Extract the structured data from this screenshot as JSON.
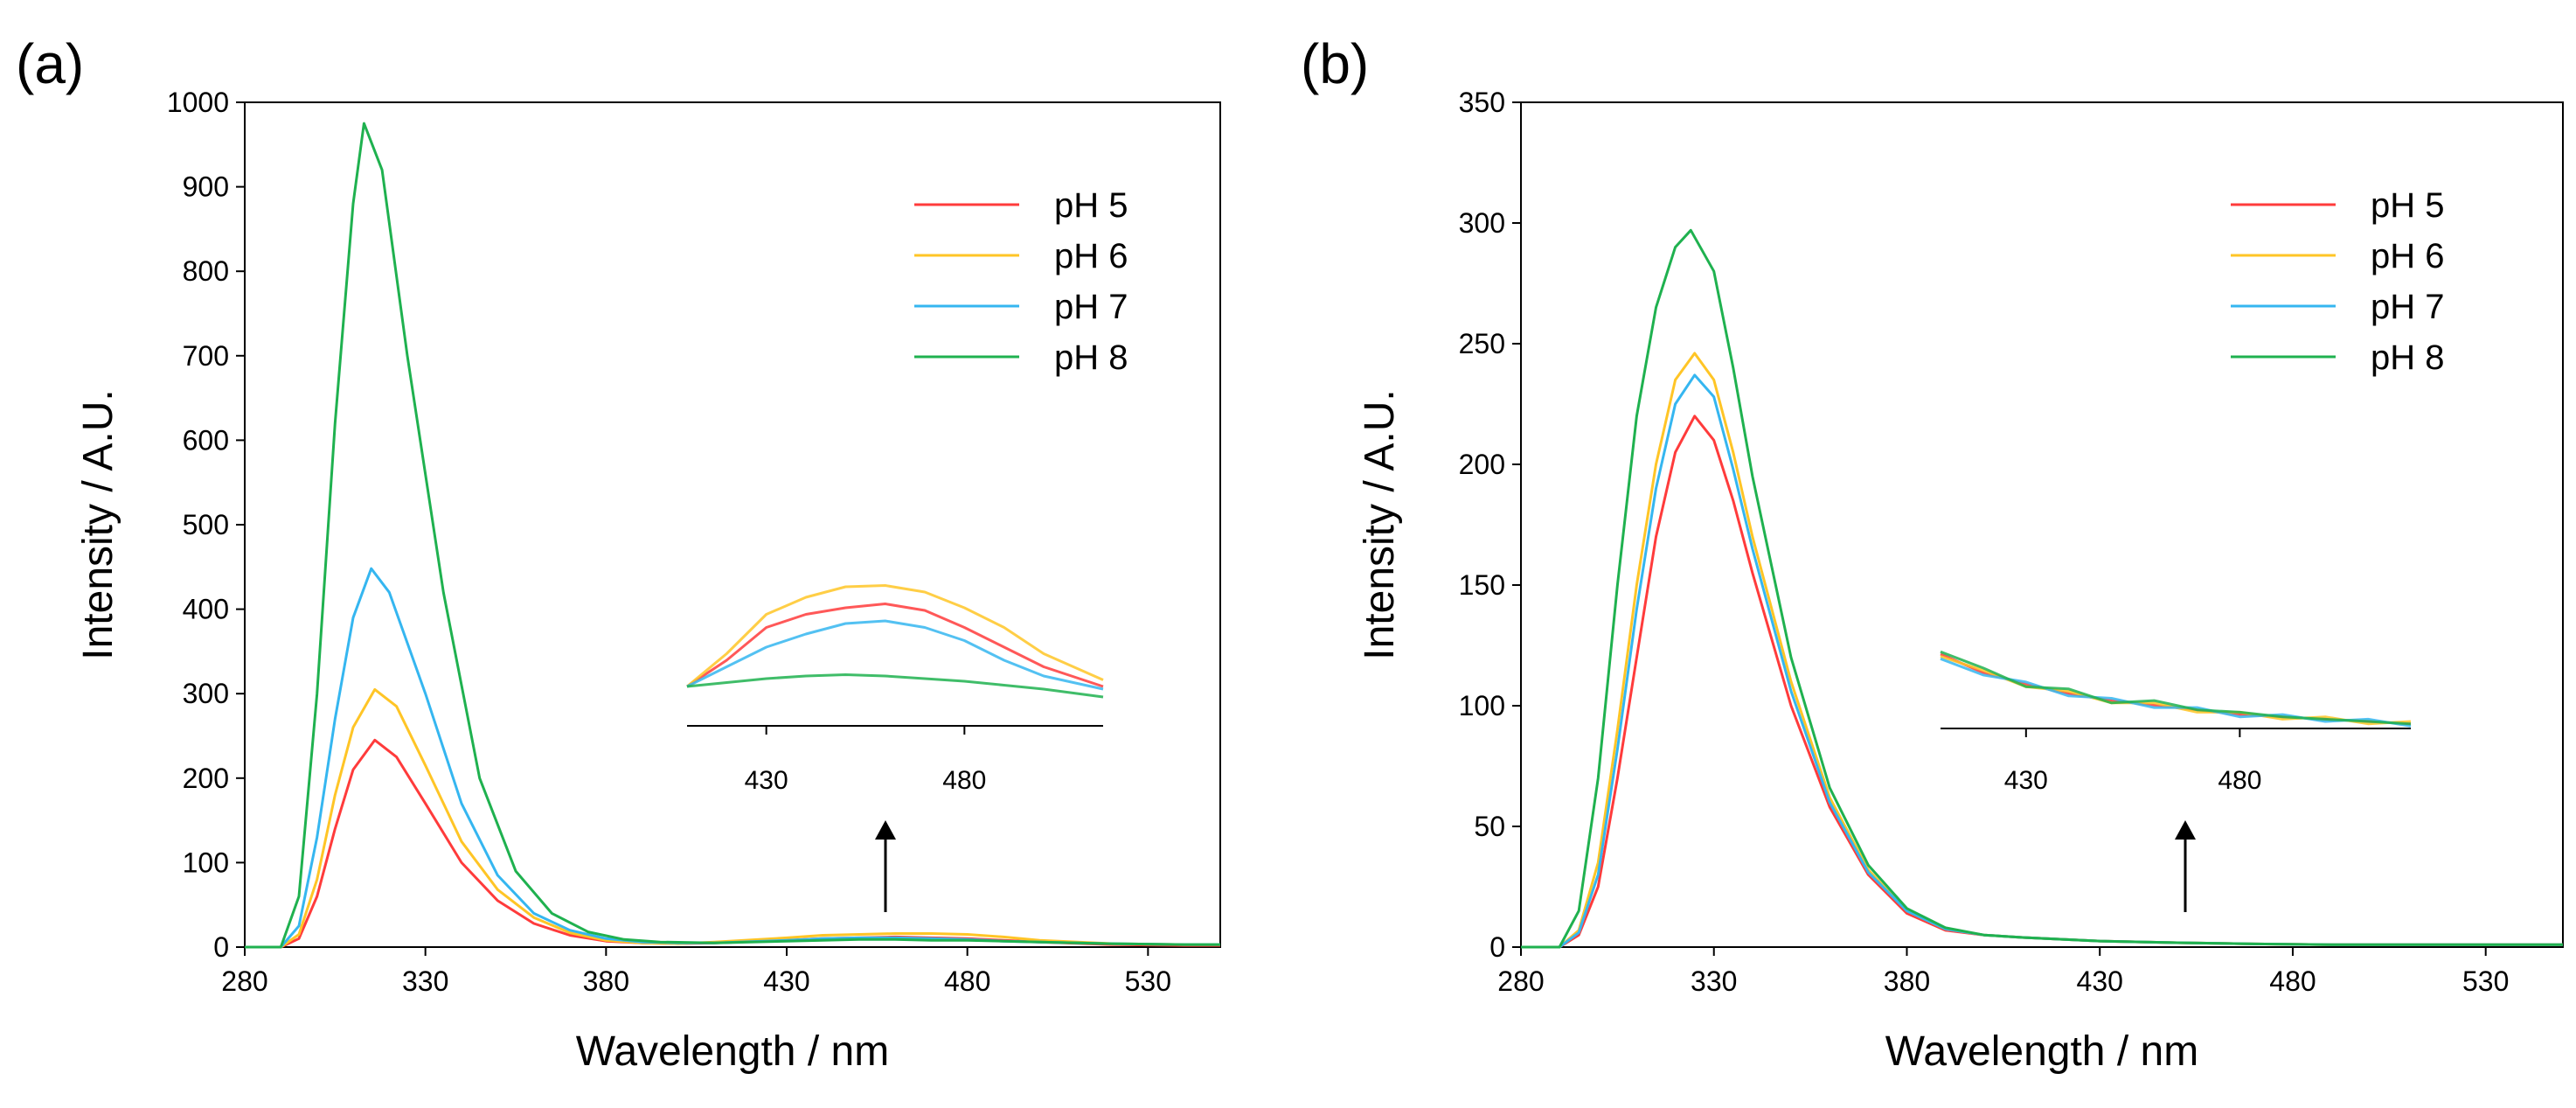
{
  "figure": {
    "panel_labels": [
      "(a)",
      "(b)"
    ]
  },
  "colors": {
    "pH 5": "#ff3b3b",
    "pH 6": "#ffc526",
    "pH 7": "#35b6f0",
    "pH 8": "#1fb14f"
  },
  "chart_data": [
    {
      "type": "line",
      "panel": "(a)",
      "xlabel": "Wavelength / nm",
      "ylabel": "Intensity / A.U.",
      "xlim": [
        280,
        550
      ],
      "ylim": [
        0,
        1000
      ],
      "xticks": [
        280,
        330,
        380,
        430,
        480,
        530
      ],
      "yticks": [
        0,
        100,
        200,
        300,
        400,
        500,
        600,
        700,
        800,
        900,
        1000
      ],
      "legend_position": "top-right",
      "series": [
        {
          "name": "pH 5",
          "peak_x": 316,
          "peak_y": 245,
          "x": [
            280,
            290,
            295,
            300,
            305,
            310,
            316,
            322,
            330,
            340,
            350,
            360,
            370,
            380,
            390,
            400,
            410,
            430,
            440,
            450,
            460,
            470,
            480,
            490,
            500,
            520,
            540,
            550
          ],
          "y": [
            0,
            0,
            10,
            60,
            140,
            210,
            245,
            225,
            170,
            100,
            55,
            28,
            14,
            7,
            5,
            4,
            5,
            8,
            10,
            11,
            12,
            11,
            10,
            8,
            6,
            3,
            2,
            2
          ]
        },
        {
          "name": "pH 6",
          "peak_x": 316,
          "peak_y": 305,
          "x": [
            280,
            290,
            295,
            300,
            305,
            310,
            316,
            322,
            330,
            340,
            350,
            360,
            370,
            380,
            390,
            400,
            410,
            430,
            440,
            450,
            460,
            470,
            480,
            490,
            500,
            520,
            540,
            550
          ],
          "y": [
            0,
            0,
            15,
            80,
            180,
            260,
            305,
            285,
            215,
            125,
            68,
            35,
            17,
            8,
            5,
            4,
            6,
            11,
            14,
            15,
            16,
            16,
            15,
            12,
            8,
            4,
            3,
            3
          ]
        },
        {
          "name": "pH 7",
          "peak_x": 315,
          "peak_y": 448,
          "x": [
            280,
            290,
            295,
            300,
            305,
            310,
            315,
            320,
            330,
            340,
            350,
            360,
            370,
            380,
            390,
            400,
            410,
            430,
            440,
            450,
            460,
            470,
            480,
            490,
            500,
            520,
            540,
            550
          ],
          "y": [
            0,
            0,
            25,
            130,
            270,
            390,
            448,
            420,
            300,
            170,
            85,
            40,
            20,
            10,
            6,
            5,
            5,
            8,
            10,
            11,
            11,
            10,
            9,
            7,
            6,
            4,
            3,
            3
          ]
        },
        {
          "name": "pH 8",
          "peak_x": 313,
          "peak_y": 975,
          "x": [
            280,
            290,
            295,
            300,
            305,
            310,
            313,
            318,
            325,
            335,
            345,
            355,
            365,
            375,
            385,
            395,
            410,
            430,
            440,
            450,
            460,
            470,
            480,
            490,
            500,
            520,
            540,
            550
          ],
          "y": [
            0,
            0,
            60,
            300,
            620,
            880,
            975,
            920,
            700,
            420,
            200,
            90,
            40,
            18,
            9,
            6,
            5,
            7,
            8,
            9,
            9,
            8,
            8,
            7,
            6,
            4,
            3,
            3
          ]
        }
      ],
      "annotation": "upward arrow at 460 nm pointing to inset",
      "inset": {
        "xlim": [
          410,
          515
        ],
        "xticks": [
          430,
          480
        ],
        "series": [
          {
            "name": "pH 5",
            "x": [
              410,
              420,
              430,
              440,
              450,
              460,
              470,
              480,
              490,
              500,
              515
            ],
            "y": [
              5,
              7,
              9.5,
              10.5,
              11,
              11.3,
              10.8,
              9.5,
              8,
              6.5,
              5
            ]
          },
          {
            "name": "pH 6",
            "x": [
              410,
              420,
              430,
              440,
              450,
              460,
              470,
              480,
              490,
              500,
              515
            ],
            "y": [
              5,
              7.5,
              10.5,
              11.8,
              12.6,
              12.7,
              12.2,
              11,
              9.5,
              7.5,
              5.5
            ]
          },
          {
            "name": "pH 7",
            "x": [
              410,
              420,
              430,
              440,
              450,
              460,
              470,
              480,
              490,
              500,
              515
            ],
            "y": [
              5,
              6.5,
              8,
              9,
              9.8,
              10,
              9.5,
              8.5,
              7,
              5.8,
              4.8
            ]
          },
          {
            "name": "pH 8",
            "x": [
              410,
              420,
              430,
              440,
              450,
              460,
              470,
              480,
              490,
              500,
              515
            ],
            "y": [
              5,
              5.3,
              5.6,
              5.8,
              5.9,
              5.8,
              5.6,
              5.4,
              5.1,
              4.8,
              4.2
            ]
          }
        ]
      }
    },
    {
      "type": "line",
      "panel": "(b)",
      "xlabel": "Wavelength / nm",
      "ylabel": "Intensity / A.U.",
      "xlim": [
        280,
        550
      ],
      "ylim": [
        0,
        350
      ],
      "xticks": [
        280,
        330,
        380,
        430,
        480,
        530
      ],
      "yticks": [
        0,
        50,
        100,
        150,
        200,
        250,
        300,
        350
      ],
      "legend_position": "top-right",
      "series": [
        {
          "name": "pH 5",
          "peak_x": 325,
          "peak_y": 220,
          "x": [
            280,
            290,
            295,
            300,
            305,
            310,
            315,
            320,
            325,
            330,
            335,
            340,
            350,
            360,
            370,
            380,
            390,
            400,
            410,
            430,
            450,
            470,
            490,
            510,
            530,
            550
          ],
          "y": [
            0,
            0,
            5,
            25,
            70,
            120,
            170,
            205,
            220,
            210,
            185,
            155,
            100,
            58,
            30,
            14,
            7,
            5,
            4,
            2.5,
            1.8,
            1.3,
            1,
            1,
            1,
            1
          ]
        },
        {
          "name": "pH 6",
          "peak_x": 325,
          "peak_y": 246,
          "x": [
            280,
            290,
            295,
            300,
            305,
            310,
            315,
            320,
            325,
            330,
            335,
            340,
            350,
            360,
            370,
            380,
            390,
            400,
            410,
            430,
            450,
            470,
            490,
            510,
            530,
            550
          ],
          "y": [
            0,
            0,
            7,
            35,
            90,
            150,
            200,
            235,
            246,
            235,
            205,
            170,
            110,
            62,
            32,
            15,
            7.5,
            5,
            4,
            2.5,
            1.8,
            1.3,
            1,
            1,
            1,
            1
          ]
        },
        {
          "name": "pH 7",
          "peak_x": 325,
          "peak_y": 237,
          "x": [
            280,
            290,
            295,
            300,
            305,
            310,
            315,
            320,
            325,
            330,
            335,
            340,
            350,
            360,
            370,
            380,
            390,
            400,
            410,
            430,
            450,
            470,
            490,
            510,
            530,
            550
          ],
          "y": [
            0,
            0,
            6,
            30,
            82,
            140,
            190,
            225,
            237,
            228,
            198,
            165,
            106,
            60,
            31,
            15,
            7.5,
            5,
            4,
            2.5,
            1.8,
            1.3,
            1,
            1,
            1,
            1
          ]
        },
        {
          "name": "pH 8",
          "peak_x": 324,
          "peak_y": 297,
          "x": [
            280,
            290,
            295,
            300,
            305,
            310,
            315,
            320,
            324,
            330,
            335,
            340,
            350,
            360,
            370,
            380,
            390,
            400,
            410,
            430,
            450,
            470,
            490,
            510,
            530,
            550
          ],
          "y": [
            0,
            0,
            15,
            70,
            150,
            220,
            265,
            290,
            297,
            280,
            240,
            195,
            120,
            66,
            34,
            16,
            8,
            5,
            4,
            2.5,
            1.8,
            1.3,
            1,
            1,
            1,
            1
          ]
        }
      ],
      "annotation": "upward arrow at 460 nm pointing to inset",
      "inset": {
        "xlim": [
          410,
          520
        ],
        "xticks": [
          430,
          480
        ],
        "series": [
          {
            "name": "pH 5",
            "x": [
              410,
              420,
              430,
              440,
              450,
              460,
              470,
              480,
              490,
              500,
              510,
              520
            ],
            "y": [
              4.2,
              3.4,
              2.9,
              2.5,
              2.2,
              2.0,
              1.8,
              1.6,
              1.5,
              1.4,
              1.3,
              1.2
            ]
          },
          {
            "name": "pH 6",
            "x": [
              410,
              420,
              430,
              440,
              450,
              460,
              470,
              480,
              490,
              500,
              510,
              520
            ],
            "y": [
              4.1,
              3.5,
              2.8,
              2.6,
              2.1,
              2.1,
              1.7,
              1.7,
              1.4,
              1.5,
              1.2,
              1.3
            ]
          },
          {
            "name": "pH 7",
            "x": [
              410,
              420,
              430,
              440,
              450,
              460,
              470,
              480,
              490,
              500,
              510,
              520
            ],
            "y": [
              4.0,
              3.3,
              3.0,
              2.4,
              2.3,
              1.9,
              1.9,
              1.5,
              1.6,
              1.3,
              1.4,
              1.1
            ]
          },
          {
            "name": "pH 8",
            "x": [
              410,
              420,
              430,
              440,
              450,
              460,
              470,
              480,
              490,
              500,
              510,
              520
            ],
            "y": [
              4.3,
              3.6,
              2.8,
              2.7,
              2.1,
              2.2,
              1.8,
              1.7,
              1.5,
              1.4,
              1.3,
              1.2
            ]
          }
        ]
      }
    }
  ]
}
